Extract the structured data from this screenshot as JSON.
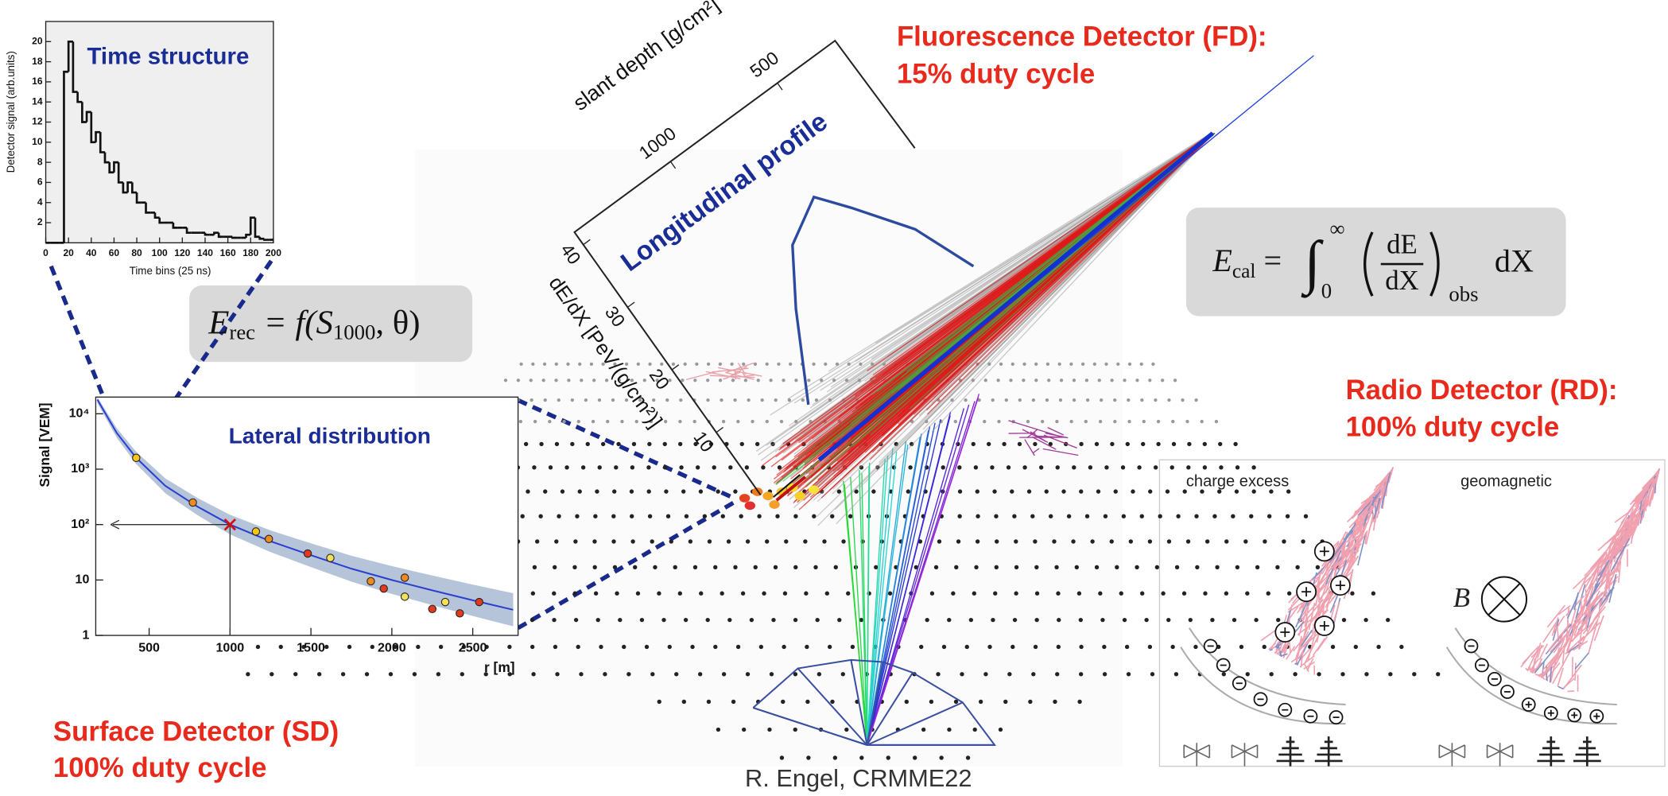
{
  "fd_label": {
    "name": "Fluorescence Detector (FD):",
    "duty": "15% duty cycle"
  },
  "sd_label": {
    "name": "Surface Detector (SD)",
    "duty": "100% duty cycle"
  },
  "rd_label": {
    "name": "Radio Detector (RD):",
    "duty": "100% duty cycle"
  },
  "credit": "R. Engel, CRMME22",
  "formula_rec": [
    "E",
    "rec",
    " = f(",
    "S",
    "1000",
    ", θ)"
  ],
  "formula_cal": [
    "E",
    "cal",
    " = ",
    "∫",
    "∞",
    "0",
    "dE",
    "dX",
    "obs",
    "dX"
  ],
  "time_structure": {
    "title": "Time structure",
    "x_label": "Time bins (25 ns)",
    "y_label": "Detector signal (arb.units)",
    "xlim": [
      0,
      200
    ],
    "ylim": [
      0,
      22
    ],
    "xticks": [
      0,
      20,
      40,
      60,
      80,
      100,
      120,
      140,
      160,
      180,
      200
    ],
    "yticks": [
      2,
      4,
      6,
      8,
      10,
      12,
      14,
      16,
      18,
      20
    ],
    "bins": [
      0,
      4,
      8,
      12,
      16,
      20,
      24,
      28,
      32,
      36,
      40,
      44,
      48,
      52,
      56,
      60,
      64,
      68,
      72,
      76,
      80,
      84,
      88,
      92,
      96,
      100,
      104,
      108,
      112,
      116,
      120,
      124,
      128,
      132,
      136,
      140,
      144,
      148,
      152,
      156,
      160,
      164,
      168,
      172,
      176,
      180,
      184,
      188,
      192,
      196,
      200
    ],
    "values": [
      0,
      0,
      0,
      0,
      17,
      20,
      15,
      14,
      12,
      13,
      10,
      11,
      9,
      8,
      7,
      8,
      6,
      5,
      6,
      5,
      4,
      4,
      3,
      3,
      2.5,
      2,
      2,
      2,
      1.5,
      1.5,
      1.5,
      1,
      1,
      1,
      1,
      0.8,
      0.8,
      1,
      0.6,
      0.6,
      0.6,
      0.5,
      0.5,
      0.5,
      0.8,
      2.5,
      0.6,
      0.4,
      0.3,
      0.3
    ]
  },
  "lateral": {
    "title": "Lateral distribution",
    "x_label": "r [m]",
    "y_label": "Signal [VEM]",
    "xlim": [
      170,
      2780
    ],
    "ylim": [
      1,
      20000
    ],
    "log_y": true,
    "xticks": [
      500,
      1000,
      1500,
      2000,
      2500
    ],
    "yticks": [
      1,
      10,
      {
        "value": 100,
        "label": "10²"
      },
      {
        "value": 1000,
        "label": "10³"
      },
      {
        "value": 10000,
        "label": "10⁴"
      }
    ],
    "points": {
      "x": [
        420,
        770,
        1160,
        1240,
        1480,
        1620,
        1870,
        1950,
        2080,
        2080,
        2250,
        2330,
        2420,
        2540
      ],
      "values": [
        1600,
        250,
        75,
        55,
        30,
        25,
        9.5,
        7,
        11,
        5,
        3,
        4,
        2.5,
        4
      ]
    },
    "fit": {
      "x": [
        180,
        300,
        420,
        600,
        800,
        1000,
        1250,
        1500,
        1750,
        2000,
        2250,
        2500,
        2750
      ],
      "values": [
        18000,
        4500,
        1600,
        500,
        210,
        100,
        50,
        28,
        16,
        10,
        6.5,
        4.3,
        2.9
      ]
    },
    "reference": [
      1000,
      100
    ]
  },
  "longitudinal": {
    "title": "Longitudinal profile",
    "x_label": "slant depth [g/cm²]",
    "y_label": "dE/dX [PeV/(g/cm²)]",
    "xlim": [
      1450,
      230
    ],
    "ylim": [
      0,
      42
    ],
    "xticks": [
      1000,
      500
    ],
    "yticks": [
      10,
      20,
      30,
      40
    ],
    "profile": {
      "x": [
        1106,
        936,
        807,
        636,
        545,
        395,
        296
      ],
      "values": [
        5.8,
        16.8,
        23.8,
        27.2,
        23.2,
        16.0,
        7.6
      ]
    }
  },
  "radio": {
    "left_title": "charge excess",
    "right_title": "geomagnetic",
    "field_label": "B⃗"
  }
}
